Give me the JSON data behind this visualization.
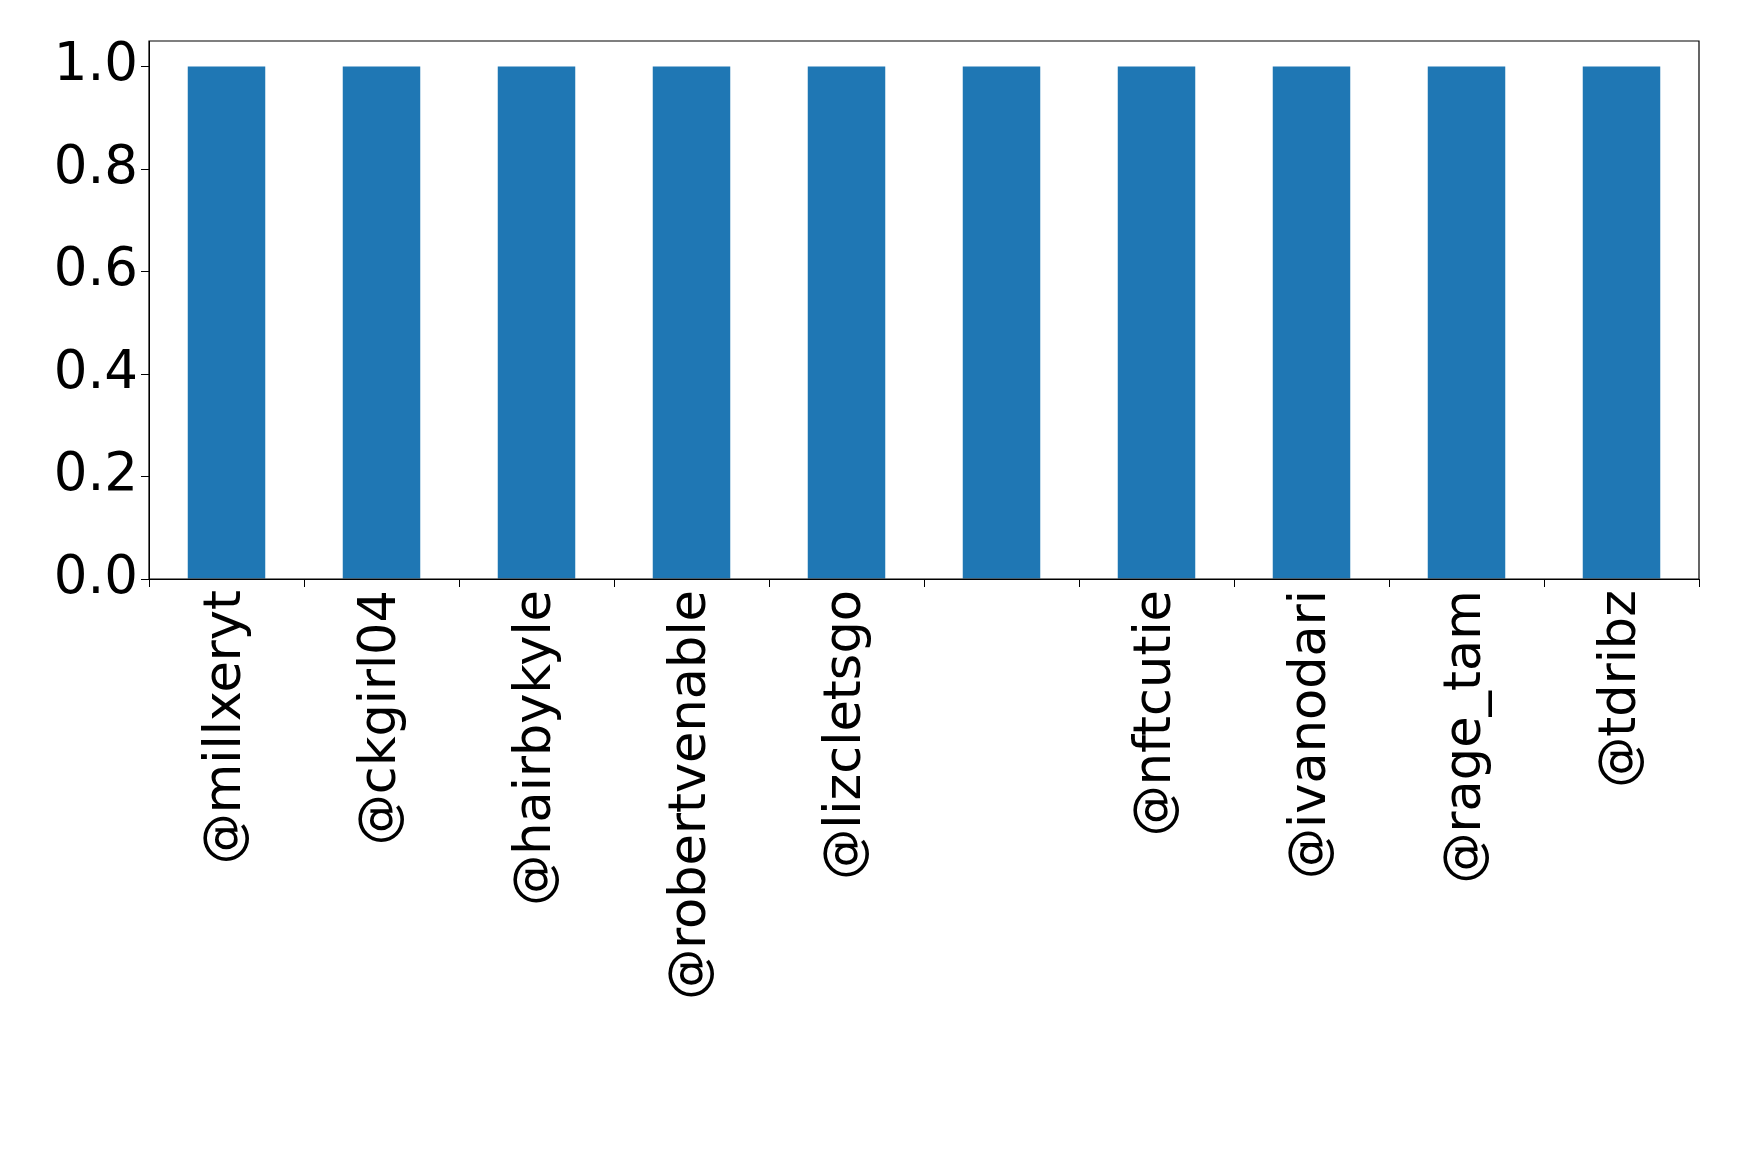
{
  "chart_data": {
    "type": "bar",
    "categories": [
      "@millxeryt",
      "@ckgirl04",
      "@hairbykyle",
      "@robertvenable",
      "@lizcletsgo",
      null,
      "@nftcutie",
      "@ivanodari",
      "@rage_tam",
      "@tdribz"
    ],
    "values": [
      1,
      1,
      1,
      1,
      1,
      1,
      1,
      1,
      1,
      1
    ],
    "color": "#1f77b4",
    "ylim": [
      0,
      1.05
    ],
    "yticks": [
      {
        "value": 0,
        "label": "0.0"
      },
      {
        "value": 0.2,
        "label": "0.2"
      },
      {
        "value": 0.4,
        "label": "0.4"
      },
      {
        "value": 0.6,
        "label": "0.6"
      },
      {
        "value": 0.8,
        "label": "0.8"
      },
      {
        "value": 1,
        "label": "1.0"
      }
    ],
    "grid": false,
    "legend": false
  }
}
